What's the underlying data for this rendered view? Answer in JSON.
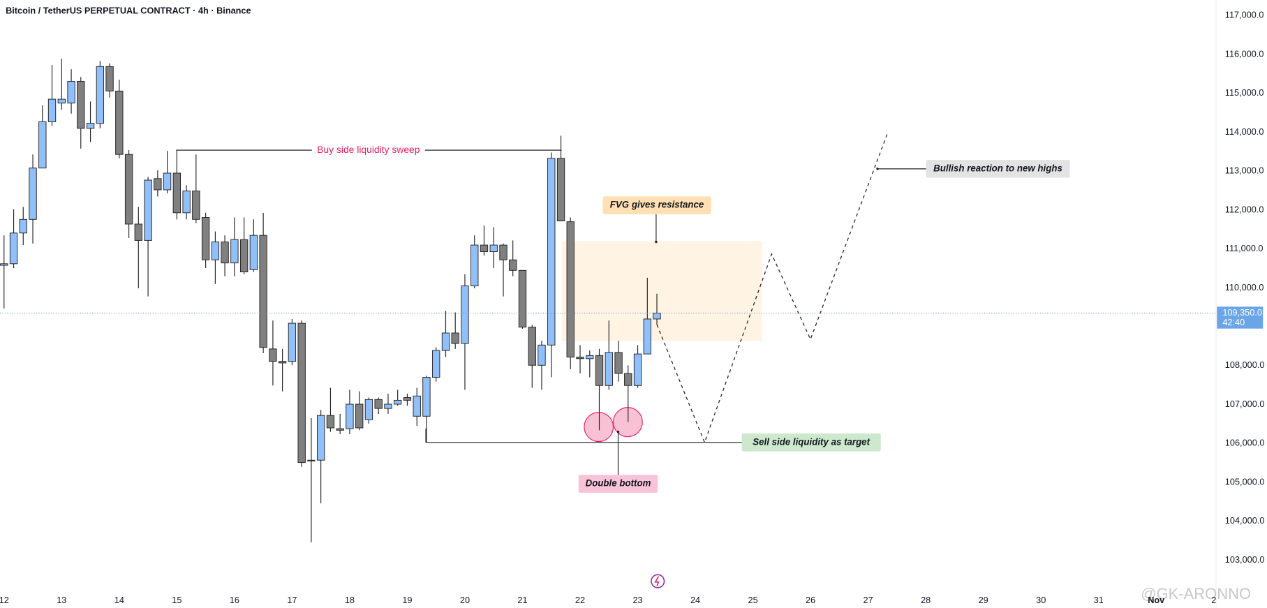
{
  "chart_data": {
    "type": "candlestick",
    "title": "Bitcoin / TetherUS PERPETUAL CONTRACT · 4h · Binance",
    "watermark": "@GK-ARONNO",
    "up_color": "#90bff9",
    "down_color": "#808080",
    "grid": false,
    "xlim": [
      11.93,
      33.04
    ],
    "xticks": [
      12,
      13,
      14,
      15,
      16,
      17,
      18,
      19,
      20,
      21,
      22,
      23,
      24,
      25,
      26,
      27,
      28,
      29,
      30,
      31,
      {
        "value": 32,
        "label": "Nov"
      },
      {
        "value": 33,
        "label": "2"
      }
    ],
    "ylim": [
      102200,
      117400
    ],
    "yticks": [
      {
        "value": 103000,
        "label": "103,000.0"
      },
      {
        "value": 104000,
        "label": "104,000.0"
      },
      {
        "value": 105000,
        "label": "105,000.0"
      },
      {
        "value": 106000,
        "label": "106,000.0"
      },
      {
        "value": 107000,
        "label": "107,000.0"
      },
      {
        "value": 108000,
        "label": "108,000.0"
      },
      {
        "value": 110000,
        "label": "110,000.0"
      },
      {
        "value": 111000,
        "label": "111,000.0"
      },
      {
        "value": 112000,
        "label": "112,000.0"
      },
      {
        "value": 113000,
        "label": "113,000.0"
      },
      {
        "value": 114000,
        "label": "114,000.0"
      },
      {
        "value": 115000,
        "label": "115,000.0"
      },
      {
        "value": 116000,
        "label": "116,000.0"
      },
      {
        "value": 117000,
        "label": "117,000.0"
      }
    ],
    "last_price": {
      "value": 109350,
      "label": "109,350.0"
    },
    "countdown": "42:40",
    "x": [
      12,
      12.167,
      12.333,
      12.5,
      12.667,
      12.833,
      13,
      13.167,
      13.333,
      13.5,
      13.667,
      13.833,
      14,
      14.167,
      14.333,
      14.5,
      14.667,
      14.833,
      15,
      15.167,
      15.333,
      15.5,
      15.667,
      15.833,
      16,
      16.167,
      16.333,
      16.5,
      16.667,
      16.833,
      17,
      17.167,
      17.333,
      17.5,
      17.667,
      17.833,
      18,
      18.167,
      18.333,
      18.5,
      18.667,
      18.833,
      19,
      19.167,
      19.333,
      19.5,
      19.667,
      19.833,
      20,
      20.167,
      20.333,
      20.5,
      20.667,
      20.833,
      21,
      21.167,
      21.333,
      21.5,
      21.667,
      21.833,
      22,
      22.167,
      22.333,
      22.5,
      22.667,
      22.833,
      23,
      23.167,
      23.333
    ],
    "open": [
      110580,
      110620,
      111410,
      111760,
      113080,
      114270,
      114750,
      114750,
      115310,
      114100,
      114230,
      115690,
      115060,
      113430,
      111640,
      111220,
      112810,
      112520,
      112950,
      111930,
      112490,
      111810,
      110720,
      111180,
      110640,
      111240,
      110470,
      111350,
      108430,
      108110,
      108110,
      109090,
      105570,
      105570,
      106720,
      106380,
      106380,
      107010,
      106610,
      107130,
      106900,
      107010,
      107180,
      106700,
      106700,
      107700,
      108390,
      108840,
      108570,
      110050,
      111100,
      110930,
      111100,
      110720,
      110450,
      108990,
      108010,
      108530,
      113330,
      111700,
      108220,
      108180,
      108260,
      107490,
      108340,
      107800,
      107490,
      108300,
      109200
    ],
    "high": [
      111350,
      112020,
      112080,
      113430,
      114690,
      115730,
      115890,
      115620,
      115420,
      114790,
      115830,
      115770,
      115350,
      113540,
      112080,
      112850,
      113020,
      113520,
      113540,
      112640,
      113430,
      111930,
      111450,
      111350,
      111810,
      111810,
      111760,
      111930,
      109160,
      108430,
      109200,
      109160,
      106650,
      106860,
      107430,
      106760,
      107380,
      107340,
      107180,
      107180,
      107280,
      107380,
      107280,
      107430,
      107740,
      108470,
      109410,
      109370,
      110350,
      111350,
      111600,
      111560,
      111140,
      111220,
      110450,
      109050,
      108640,
      113480,
      113910,
      111810,
      108530,
      108390,
      108430,
      109160,
      108640,
      108010,
      108530,
      110260,
      109850
    ],
    "low": [
      109470,
      110510,
      111100,
      111140,
      113080,
      114160,
      114580,
      114480,
      113580,
      113750,
      114100,
      114890,
      113330,
      111280,
      109990,
      109780,
      112350,
      112430,
      111760,
      111760,
      111660,
      110510,
      110100,
      110300,
      110300,
      110350,
      110410,
      108320,
      107490,
      107340,
      108010,
      105400,
      103460,
      104460,
      106300,
      106240,
      106240,
      106340,
      106510,
      106760,
      106760,
      106970,
      106970,
      106450,
      106030,
      107590,
      108220,
      108430,
      107380,
      109990,
      110830,
      110510,
      109780,
      110300,
      108950,
      107430,
      107380,
      107700,
      111720,
      107910,
      107800,
      107700,
      106340,
      107380,
      107590,
      106550,
      107430,
      108300,
      109050
    ],
    "close": [
      110620,
      111410,
      111760,
      113080,
      114270,
      114850,
      114850,
      115310,
      114100,
      114230,
      115690,
      115060,
      113430,
      111640,
      111220,
      112770,
      112520,
      112950,
      111930,
      112490,
      111760,
      110720,
      111180,
      110640,
      111240,
      110410,
      111350,
      108470,
      108110,
      108070,
      109090,
      105510,
      105550,
      106720,
      106400,
      106340,
      107010,
      106400,
      107130,
      106900,
      107010,
      107110,
      107110,
      107220,
      107700,
      108390,
      108840,
      108570,
      110050,
      111100,
      110930,
      111100,
      110720,
      110450,
      108990,
      108010,
      108530,
      113330,
      111720,
      108220,
      108180,
      108260,
      107490,
      108340,
      107800,
      107490,
      108300,
      109200,
      109350
    ],
    "annotations": [
      {
        "text": "Buy side liquidity sweep"
      },
      {
        "text": "FVG gives resistance"
      },
      {
        "text": "Double bottom"
      },
      {
        "text": "Sell side liquidity as target"
      },
      {
        "text": "Bullish reaction to new highs"
      }
    ]
  }
}
